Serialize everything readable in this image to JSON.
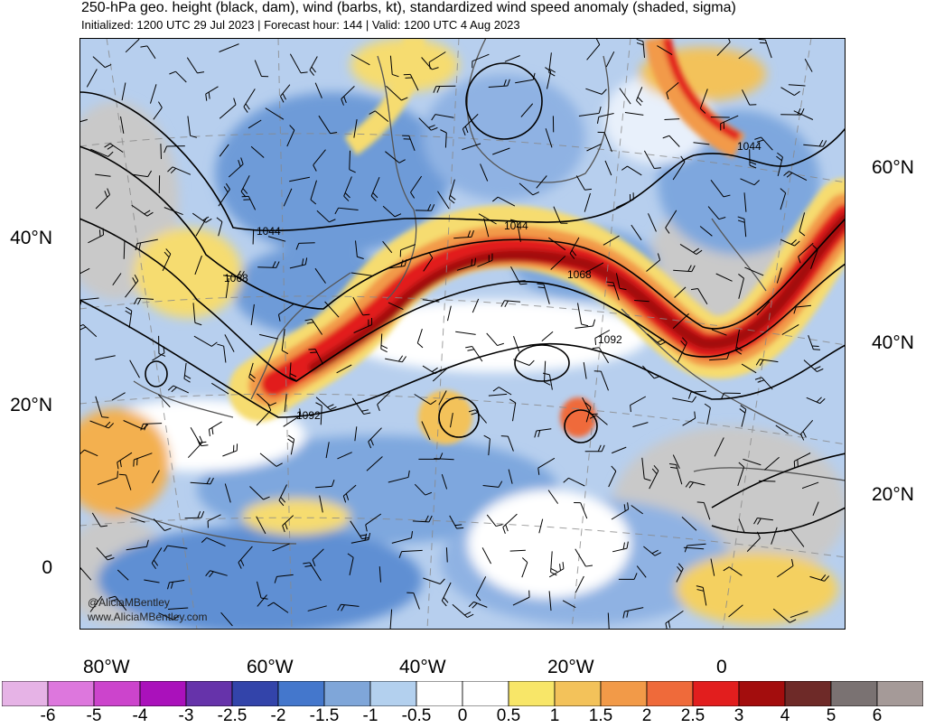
{
  "header": {
    "title": "250-hPa geo. height (black, dam), wind (barbs, kt), standardized wind speed anomaly (shaded, sigma)",
    "subtitle": "Initialized: 1200 UTC 29 Jul 2023 | Forecast hour: 144 | Valid: 1200 UTC 4 Aug 2023"
  },
  "axes": {
    "lat_left": [
      "40°N",
      "20°N",
      "0"
    ],
    "lat_right": [
      "60°N",
      "40°N",
      "20°N"
    ],
    "lon_bottom": [
      "80°W",
      "60°W",
      "40°W",
      "20°W",
      "0"
    ]
  },
  "contour_labels": [
    "1044",
    "1068",
    "1092",
    "1044",
    "1068",
    "1092",
    "1044"
  ],
  "credit": {
    "handle": "@AliciaMBentley",
    "site": "www.AliciaMBentley.com"
  },
  "colorbar": {
    "labels": [
      "-6",
      "-5",
      "-4",
      "-3",
      "-2.5",
      "-2",
      "-1.5",
      "-1",
      "-0.5",
      "0",
      "0.5",
      "1",
      "1.5",
      "2",
      "2.5",
      "3",
      "4",
      "5",
      "6"
    ],
    "colors": [
      "#e6b3e6",
      "#dd77dd",
      "#cc44cc",
      "#aa11bb",
      "#6633aa",
      "#3344aa",
      "#4477cc",
      "#7fa6d9",
      "#b3d0ee",
      "#ffffff",
      "#ffffff",
      "#f8e668",
      "#f3c25a",
      "#f29a48",
      "#ef6a3a",
      "#e21e1e",
      "#a30d0d",
      "#6e2a28",
      "#7a7272",
      "#a59a98"
    ]
  },
  "colors": {
    "land_gray": "#c9c9c9",
    "ocean_blue": "#9bbbe6",
    "jet_red": "#c8110f"
  }
}
